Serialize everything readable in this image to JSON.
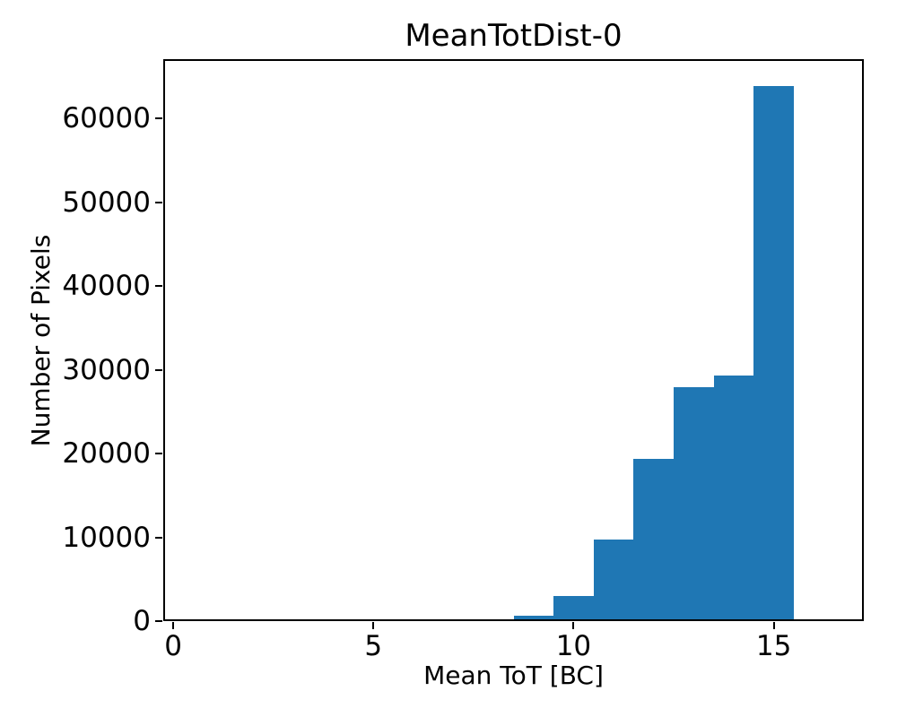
{
  "figure": {
    "background": "#ffffff",
    "text_color": "#000000"
  },
  "chart_data": {
    "type": "bar",
    "subtype": "histogram",
    "title": "MeanTotDist-0",
    "xlabel": "Mean ToT [BC]",
    "ylabel": "Number of Pixels",
    "bar_color": "#1f77b4",
    "axis_color": "#000000",
    "grid": false,
    "legend_position": "none",
    "xlim": [
      -0.25,
      17.25
    ],
    "ylim": [
      0,
      67100
    ],
    "xticks": [
      0,
      5,
      10,
      15
    ],
    "yticks": [
      0,
      10000,
      20000,
      30000,
      40000,
      50000,
      60000
    ],
    "bin_edges": [
      7.5,
      8.5,
      9.5,
      10.5,
      11.5,
      12.5,
      13.5,
      14.5,
      15.5
    ],
    "counts": [
      150,
      600,
      3050,
      9700,
      19400,
      27950,
      29350,
      63900
    ]
  }
}
